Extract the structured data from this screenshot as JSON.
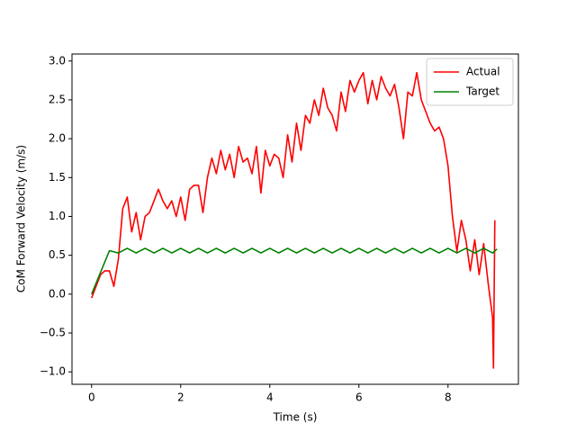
{
  "chart_data": {
    "type": "line",
    "xlabel": "Time (s)",
    "ylabel": "CoM Forward Velocity (m/s)",
    "xlim": [
      -0.44,
      9.58
    ],
    "ylim": [
      -1.16,
      3.09
    ],
    "xticks": [
      0,
      2,
      4,
      6,
      8
    ],
    "yticks": [
      {
        "value": -1,
        "label": "−1.0"
      },
      {
        "value": -0.5,
        "label": "−0.5"
      },
      {
        "value": 0,
        "label": "0.0"
      },
      {
        "value": 0.5,
        "label": "0.5"
      },
      {
        "value": 1,
        "label": "1.0"
      },
      {
        "value": 1.5,
        "label": "1.5"
      },
      {
        "value": 2,
        "label": "2.0"
      },
      {
        "value": 2.5,
        "label": "2.5"
      },
      {
        "value": 3,
        "label": "3.0"
      }
    ],
    "legend": "upper right",
    "series": [
      {
        "name": "Actual",
        "color": "#ff0000",
        "x": [
          0,
          0.1,
          0.2,
          0.3,
          0.4,
          0.5,
          0.6,
          0.7,
          0.8,
          0.9,
          1.0,
          1.1,
          1.2,
          1.3,
          1.4,
          1.5,
          1.6,
          1.7,
          1.8,
          1.9,
          2.0,
          2.1,
          2.2,
          2.3,
          2.4,
          2.5,
          2.6,
          2.7,
          2.8,
          2.9,
          3.0,
          3.1,
          3.2,
          3.3,
          3.4,
          3.5,
          3.6,
          3.7,
          3.8,
          3.9,
          4.0,
          4.1,
          4.2,
          4.3,
          4.4,
          4.5,
          4.6,
          4.7,
          4.8,
          4.9,
          5.0,
          5.1,
          5.2,
          5.3,
          5.4,
          5.5,
          5.6,
          5.7,
          5.8,
          5.9,
          6.0,
          6.1,
          6.2,
          6.3,
          6.4,
          6.5,
          6.6,
          6.7,
          6.8,
          6.9,
          7.0,
          7.1,
          7.2,
          7.3,
          7.4,
          7.5,
          7.6,
          7.7,
          7.8,
          7.9,
          8.0,
          8.1,
          8.2,
          8.3,
          8.4,
          8.5,
          8.6,
          8.7,
          8.8,
          8.9,
          9.0,
          9.02,
          9.05
        ],
        "values": [
          -0.05,
          0.1,
          0.25,
          0.3,
          0.3,
          0.1,
          0.45,
          1.1,
          1.25,
          0.8,
          1.05,
          0.7,
          1.0,
          1.05,
          1.2,
          1.35,
          1.2,
          1.1,
          1.2,
          1.0,
          1.25,
          0.95,
          1.35,
          1.4,
          1.4,
          1.05,
          1.5,
          1.75,
          1.55,
          1.85,
          1.6,
          1.8,
          1.5,
          1.9,
          1.7,
          1.75,
          1.55,
          1.9,
          1.3,
          1.85,
          1.65,
          1.8,
          1.75,
          1.5,
          2.05,
          1.7,
          2.2,
          1.85,
          2.3,
          2.2,
          2.5,
          2.3,
          2.65,
          2.4,
          2.3,
          2.1,
          2.6,
          2.35,
          2.75,
          2.6,
          2.75,
          2.85,
          2.45,
          2.75,
          2.5,
          2.8,
          2.65,
          2.55,
          2.7,
          2.4,
          2.0,
          2.6,
          2.55,
          2.85,
          2.5,
          2.35,
          2.2,
          2.1,
          2.15,
          2.0,
          1.65,
          1.0,
          0.55,
          0.95,
          0.7,
          0.3,
          0.7,
          0.25,
          0.65,
          0.15,
          -0.3,
          -0.95,
          0.95
        ]
      },
      {
        "name": "Target",
        "color": "#008000",
        "x": [
          0,
          0.4,
          0.6,
          0.8,
          1.0,
          1.2,
          1.4,
          1.6,
          1.8,
          2.0,
          2.2,
          2.4,
          2.6,
          2.8,
          3.0,
          3.2,
          3.4,
          3.6,
          3.8,
          4.0,
          4.2,
          4.4,
          4.6,
          4.8,
          5.0,
          5.2,
          5.4,
          5.6,
          5.8,
          6.0,
          6.2,
          6.4,
          6.6,
          6.8,
          7.0,
          7.2,
          7.4,
          7.6,
          7.8,
          8.0,
          8.2,
          8.4,
          8.6,
          8.8,
          9.0,
          9.1
        ],
        "values": [
          0,
          0.56,
          0.53,
          0.59,
          0.53,
          0.59,
          0.53,
          0.59,
          0.53,
          0.59,
          0.53,
          0.59,
          0.53,
          0.59,
          0.53,
          0.59,
          0.53,
          0.59,
          0.53,
          0.59,
          0.53,
          0.59,
          0.53,
          0.59,
          0.53,
          0.59,
          0.53,
          0.59,
          0.53,
          0.59,
          0.53,
          0.59,
          0.53,
          0.59,
          0.53,
          0.59,
          0.53,
          0.59,
          0.53,
          0.59,
          0.53,
          0.59,
          0.53,
          0.59,
          0.53,
          0.58
        ]
      }
    ]
  }
}
